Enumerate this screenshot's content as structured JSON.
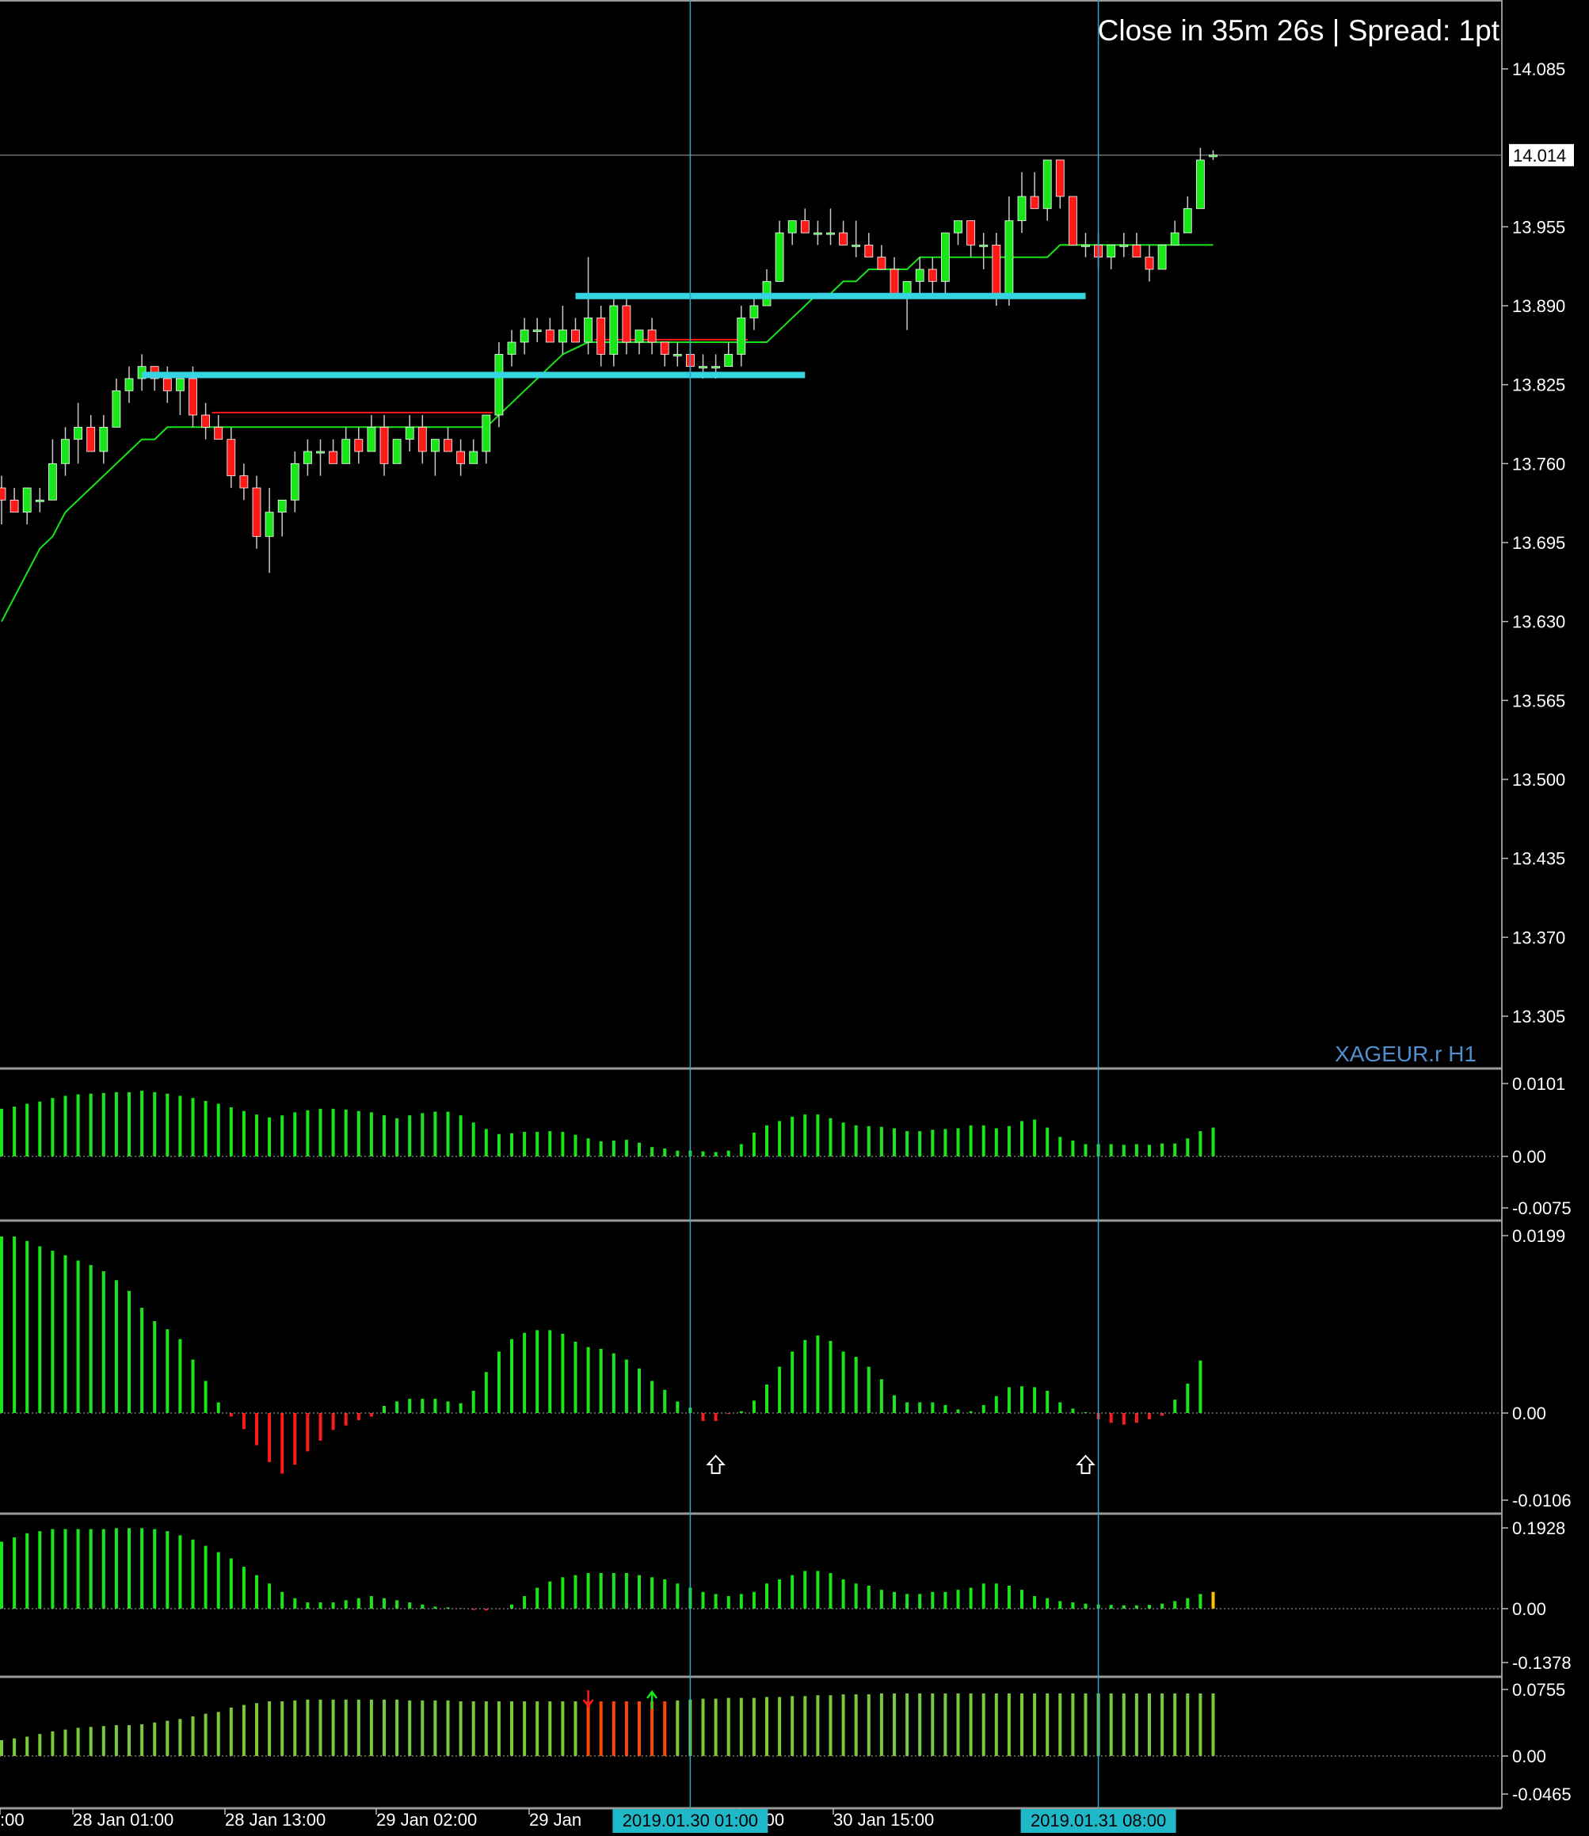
{
  "header": {
    "countdown": "Close in 35m 26s | Spread: 1pt",
    "symbol_label": "XAGEUR.r H1"
  },
  "colors": {
    "background": "#000000",
    "bull": "#19e619",
    "bear": "#ff1a1a",
    "wick": "#c8c8c8",
    "ma": "#19e619",
    "level": "#35d4e0",
    "vline": "#2aa8c8",
    "divider": "#9a9a9a",
    "orange": "#ff4500",
    "yellow": "#ffc000"
  },
  "price_panel": {
    "y_ticks": [
      "14.085",
      "13.955",
      "13.890",
      "13.825",
      "13.760",
      "13.695",
      "13.630",
      "13.565",
      "13.500",
      "13.435",
      "13.370",
      "13.305"
    ],
    "ylim": [
      13.26,
      14.11
    ],
    "current_price": "14.014"
  },
  "indicator_panels": [
    {
      "ticks": [
        "0.0101",
        "0.00",
        "-0.0075"
      ]
    },
    {
      "ticks": [
        "0.0199",
        "0.00",
        "-0.0106"
      ]
    },
    {
      "ticks": [
        "0.1928",
        "0.00",
        "-0.1378"
      ]
    },
    {
      "ticks": [
        "0.0755",
        "0.00",
        "-0.0465"
      ]
    }
  ],
  "x_axis": {
    "labels": [
      ":00",
      "28 Jan 01:00",
      "28 Jan 13:00",
      "29 Jan 02:00",
      "29 Jan",
      "03:00",
      "30 Jan 15:00"
    ],
    "highlight_labels": [
      "2019.01.30 01:00",
      "2019.01.31 08:00"
    ]
  },
  "chart_data": {
    "type": "candlestick",
    "ylim": [
      13.26,
      14.11
    ],
    "candles": [
      [
        13.74,
        13.75,
        13.71,
        13.73
      ],
      [
        13.73,
        13.74,
        13.72,
        13.72
      ],
      [
        13.72,
        13.74,
        13.71,
        13.74
      ],
      [
        13.73,
        13.74,
        13.72,
        13.73
      ],
      [
        13.73,
        13.78,
        13.73,
        13.76
      ],
      [
        13.76,
        13.79,
        13.75,
        13.78
      ],
      [
        13.78,
        13.81,
        13.76,
        13.79
      ],
      [
        13.79,
        13.8,
        13.77,
        13.77
      ],
      [
        13.77,
        13.8,
        13.76,
        13.79
      ],
      [
        13.79,
        13.83,
        13.79,
        13.82
      ],
      [
        13.82,
        13.84,
        13.81,
        13.83
      ],
      [
        13.83,
        13.85,
        13.82,
        13.84
      ],
      [
        13.84,
        13.84,
        13.82,
        13.83
      ],
      [
        13.83,
        13.84,
        13.81,
        13.82
      ],
      [
        13.82,
        13.83,
        13.8,
        13.83
      ],
      [
        13.83,
        13.84,
        13.79,
        13.8
      ],
      [
        13.8,
        13.81,
        13.78,
        13.79
      ],
      [
        13.79,
        13.8,
        13.78,
        13.78
      ],
      [
        13.78,
        13.79,
        13.74,
        13.75
      ],
      [
        13.75,
        13.76,
        13.73,
        13.74
      ],
      [
        13.74,
        13.75,
        13.69,
        13.7
      ],
      [
        13.7,
        13.74,
        13.67,
        13.72
      ],
      [
        13.72,
        13.73,
        13.7,
        13.73
      ],
      [
        13.73,
        13.77,
        13.72,
        13.76
      ],
      [
        13.76,
        13.78,
        13.75,
        13.77
      ],
      [
        13.77,
        13.78,
        13.75,
        13.77
      ],
      [
        13.77,
        13.78,
        13.76,
        13.76
      ],
      [
        13.76,
        13.79,
        13.76,
        13.78
      ],
      [
        13.78,
        13.79,
        13.76,
        13.77
      ],
      [
        13.77,
        13.8,
        13.77,
        13.79
      ],
      [
        13.79,
        13.8,
        13.75,
        13.76
      ],
      [
        13.76,
        13.78,
        13.76,
        13.78
      ],
      [
        13.78,
        13.8,
        13.77,
        13.79
      ],
      [
        13.79,
        13.8,
        13.76,
        13.77
      ],
      [
        13.77,
        13.78,
        13.75,
        13.78
      ],
      [
        13.78,
        13.79,
        13.77,
        13.77
      ],
      [
        13.77,
        13.78,
        13.75,
        13.76
      ],
      [
        13.76,
        13.78,
        13.76,
        13.77
      ],
      [
        13.77,
        13.8,
        13.76,
        13.8
      ],
      [
        13.8,
        13.86,
        13.79,
        13.85
      ],
      [
        13.85,
        13.87,
        13.84,
        13.86
      ],
      [
        13.86,
        13.88,
        13.85,
        13.87
      ],
      [
        13.87,
        13.88,
        13.86,
        13.87
      ],
      [
        13.87,
        13.88,
        13.86,
        13.86
      ],
      [
        13.86,
        13.89,
        13.85,
        13.87
      ],
      [
        13.87,
        13.88,
        13.86,
        13.86
      ],
      [
        13.86,
        13.93,
        13.85,
        13.88
      ],
      [
        13.88,
        13.89,
        13.84,
        13.85
      ],
      [
        13.85,
        13.9,
        13.84,
        13.89
      ],
      [
        13.89,
        13.9,
        13.85,
        13.86
      ],
      [
        13.86,
        13.87,
        13.85,
        13.87
      ],
      [
        13.87,
        13.88,
        13.85,
        13.86
      ],
      [
        13.86,
        13.86,
        13.84,
        13.85
      ],
      [
        13.85,
        13.86,
        13.84,
        13.85
      ],
      [
        13.85,
        13.86,
        13.83,
        13.84
      ],
      [
        13.84,
        13.85,
        13.83,
        13.84
      ],
      [
        13.84,
        13.85,
        13.83,
        13.84
      ],
      [
        13.84,
        13.86,
        13.84,
        13.85
      ],
      [
        13.85,
        13.89,
        13.84,
        13.88
      ],
      [
        13.88,
        13.9,
        13.87,
        13.89
      ],
      [
        13.89,
        13.92,
        13.89,
        13.91
      ],
      [
        13.91,
        13.96,
        13.91,
        13.95
      ],
      [
        13.95,
        13.96,
        13.94,
        13.96
      ],
      [
        13.96,
        13.97,
        13.95,
        13.95
      ],
      [
        13.95,
        13.96,
        13.94,
        13.95
      ],
      [
        13.95,
        13.97,
        13.94,
        13.95
      ],
      [
        13.95,
        13.96,
        13.94,
        13.94
      ],
      [
        13.94,
        13.96,
        13.93,
        13.94
      ],
      [
        13.94,
        13.95,
        13.93,
        13.93
      ],
      [
        13.93,
        13.94,
        13.92,
        13.92
      ],
      [
        13.92,
        13.93,
        13.9,
        13.9
      ],
      [
        13.9,
        13.91,
        13.87,
        13.91
      ],
      [
        13.91,
        13.93,
        13.9,
        13.92
      ],
      [
        13.92,
        13.93,
        13.9,
        13.91
      ],
      [
        13.91,
        13.95,
        13.9,
        13.95
      ],
      [
        13.95,
        13.96,
        13.94,
        13.96
      ],
      [
        13.96,
        13.96,
        13.93,
        13.94
      ],
      [
        13.94,
        13.95,
        13.92,
        13.94
      ],
      [
        13.94,
        13.95,
        13.89,
        13.9
      ],
      [
        13.9,
        13.98,
        13.89,
        13.96
      ],
      [
        13.96,
        14.0,
        13.95,
        13.98
      ],
      [
        13.98,
        14.0,
        13.97,
        13.97
      ],
      [
        13.97,
        14.01,
        13.96,
        14.01
      ],
      [
        14.01,
        14.01,
        13.97,
        13.98
      ],
      [
        13.98,
        13.98,
        13.94,
        13.94
      ],
      [
        13.94,
        13.95,
        13.93,
        13.94
      ],
      [
        13.94,
        13.95,
        13.92,
        13.93
      ],
      [
        13.93,
        13.94,
        13.92,
        13.94
      ],
      [
        13.94,
        13.95,
        13.93,
        13.94
      ],
      [
        13.94,
        13.95,
        13.93,
        13.93
      ],
      [
        13.93,
        13.94,
        13.91,
        13.92
      ],
      [
        13.92,
        13.94,
        13.92,
        13.94
      ],
      [
        13.94,
        13.96,
        13.94,
        13.95
      ],
      [
        13.95,
        13.98,
        13.95,
        13.97
      ],
      [
        13.97,
        14.02,
        13.97,
        14.01
      ],
      [
        14.014,
        14.018,
        14.01,
        14.014
      ]
    ],
    "ma": [
      13.63,
      13.65,
      13.67,
      13.69,
      13.7,
      13.72,
      13.73,
      13.74,
      13.75,
      13.76,
      13.77,
      13.78,
      13.78,
      13.79,
      13.79,
      13.79,
      13.79,
      13.79,
      13.79,
      13.79,
      13.79,
      13.79,
      13.79,
      13.79,
      13.79,
      13.79,
      13.79,
      13.79,
      13.79,
      13.79,
      13.79,
      13.79,
      13.79,
      13.79,
      13.79,
      13.79,
      13.79,
      13.79,
      13.79,
      13.8,
      13.81,
      13.82,
      13.83,
      13.84,
      13.85,
      13.855,
      13.86,
      13.86,
      13.86,
      13.86,
      13.86,
      13.86,
      13.86,
      13.86,
      13.86,
      13.86,
      13.86,
      13.86,
      13.86,
      13.86,
      13.86,
      13.87,
      13.88,
      13.89,
      13.9,
      13.9,
      13.91,
      13.91,
      13.92,
      13.92,
      13.92,
      13.92,
      13.93,
      13.93,
      13.93,
      13.93,
      13.93,
      13.93,
      13.93,
      13.93,
      13.93,
      13.93,
      13.93,
      13.94,
      13.94,
      13.94,
      13.94,
      13.94,
      13.94,
      13.94,
      13.94,
      13.94,
      13.94,
      13.94,
      13.94,
      13.94
    ],
    "levels": [
      {
        "price": 13.833,
        "from": 11,
        "to": 63
      },
      {
        "price": 13.898,
        "from": 45,
        "to": 85
      }
    ],
    "red_segments": [
      {
        "price": 13.802,
        "from": 16,
        "to": 38
      },
      {
        "price": 13.862,
        "from": 46,
        "to": 58
      }
    ],
    "vlines_at_index": [
      54,
      86
    ],
    "ind1": [
      0.0066,
      0.0069,
      0.0073,
      0.0076,
      0.0081,
      0.0084,
      0.0086,
      0.0087,
      0.0088,
      0.0089,
      0.0089,
      0.0091,
      0.0089,
      0.0087,
      0.0084,
      0.0081,
      0.0077,
      0.0073,
      0.0068,
      0.0063,
      0.0058,
      0.0054,
      0.0057,
      0.0061,
      0.0064,
      0.0066,
      0.0066,
      0.0065,
      0.0063,
      0.0061,
      0.0057,
      0.0053,
      0.0057,
      0.006,
      0.0062,
      0.0062,
      0.0057,
      0.0047,
      0.0038,
      0.0031,
      0.0032,
      0.0034,
      0.0034,
      0.0035,
      0.0034,
      0.003,
      0.0025,
      0.0021,
      0.0022,
      0.0023,
      0.0019,
      0.0013,
      0.0011,
      0.0008,
      0.0008,
      0.0007,
      0.0006,
      0.0008,
      0.0017,
      0.0033,
      0.0043,
      0.0049,
      0.0055,
      0.0058,
      0.0058,
      0.0053,
      0.0047,
      0.0043,
      0.0042,
      0.0041,
      0.0039,
      0.0035,
      0.0035,
      0.0037,
      0.0038,
      0.0039,
      0.0043,
      0.0043,
      0.0039,
      0.0042,
      0.0049,
      0.0051,
      0.004,
      0.0027,
      0.0022,
      0.0017,
      0.0017,
      0.0017,
      0.0016,
      0.0017,
      0.0016,
      0.0018,
      0.0018,
      0.0025,
      0.0035,
      0.004
    ],
    "ind2": [
      0.0198,
      0.0198,
      0.0193,
      0.0187,
      0.0182,
      0.0177,
      0.0171,
      0.0166,
      0.0159,
      0.0149,
      0.0137,
      0.0118,
      0.0103,
      0.0094,
      0.0083,
      0.006,
      0.0036,
      0.0012,
      -0.0004,
      -0.0018,
      -0.0036,
      -0.0055,
      -0.0068,
      -0.0058,
      -0.0043,
      -0.0031,
      -0.0019,
      -0.0014,
      -0.0008,
      -0.0004,
      0.0008,
      0.0013,
      0.0016,
      0.0016,
      0.0016,
      0.0013,
      0.0011,
      0.0025,
      0.0046,
      0.0069,
      0.0083,
      0.009,
      0.0093,
      0.0093,
      0.0089,
      0.008,
      0.0074,
      0.0072,
      0.0067,
      0.006,
      0.005,
      0.0036,
      0.0026,
      0.0013,
      0.0006,
      -0.0009,
      -0.0009,
      -0.0001,
      0.0002,
      0.0014,
      0.0032,
      0.0052,
      0.0069,
      0.0082,
      0.0087,
      0.0081,
      0.0069,
      0.0063,
      0.0052,
      0.0038,
      0.002,
      0.0012,
      0.0012,
      0.0012,
      0.0009,
      0.0004,
      0.0002,
      0.0009,
      0.0019,
      0.0029,
      0.003,
      0.0029,
      0.0025,
      0.0012,
      0.0005,
      0.0001,
      -0.0007,
      -0.0011,
      -0.0013,
      -0.0011,
      -0.0007,
      -0.0003,
      0.0015,
      0.0033,
      0.0059
    ],
    "ind3": [
      0.16,
      0.17,
      0.18,
      0.185,
      0.19,
      0.19,
      0.19,
      0.19,
      0.19,
      0.192,
      0.192,
      0.192,
      0.19,
      0.185,
      0.175,
      0.165,
      0.15,
      0.135,
      0.12,
      0.1,
      0.08,
      0.06,
      0.04,
      0.025,
      0.015,
      0.015,
      0.015,
      0.02,
      0.025,
      0.03,
      0.025,
      0.02,
      0.015,
      0.01,
      0.005,
      0.003,
      0.001,
      -0.003,
      -0.004,
      -0.001,
      0.01,
      0.03,
      0.05,
      0.065,
      0.075,
      0.08,
      0.085,
      0.085,
      0.085,
      0.085,
      0.08,
      0.075,
      0.07,
      0.06,
      0.05,
      0.04,
      0.035,
      0.03,
      0.035,
      0.04,
      0.06,
      0.07,
      0.08,
      0.09,
      0.09,
      0.085,
      0.07,
      0.06,
      0.055,
      0.045,
      0.04,
      0.035,
      0.035,
      0.04,
      0.04,
      0.045,
      0.05,
      0.06,
      0.06,
      0.055,
      0.045,
      0.03,
      0.025,
      0.018,
      0.015,
      0.012,
      0.01,
      0.009,
      0.008,
      0.008,
      0.009,
      0.012,
      0.018,
      0.025,
      0.035,
      0.04
    ],
    "ind4": [
      0.018,
      0.02,
      0.022,
      0.025,
      0.028,
      0.03,
      0.032,
      0.033,
      0.034,
      0.035,
      0.035,
      0.036,
      0.038,
      0.04,
      0.042,
      0.045,
      0.048,
      0.05,
      0.055,
      0.058,
      0.06,
      0.062,
      0.062,
      0.063,
      0.064,
      0.064,
      0.064,
      0.064,
      0.064,
      0.064,
      0.064,
      0.064,
      0.063,
      0.063,
      0.063,
      0.063,
      0.062,
      0.062,
      0.062,
      0.062,
      0.062,
      0.062,
      0.062,
      0.062,
      0.062,
      0.062,
      0.062,
      0.062,
      0.062,
      0.062,
      0.062,
      0.062,
      0.062,
      0.063,
      0.064,
      0.065,
      0.065,
      0.066,
      0.066,
      0.066,
      0.067,
      0.067,
      0.068,
      0.068,
      0.069,
      0.069,
      0.07,
      0.07,
      0.07,
      0.071,
      0.071,
      0.071,
      0.071,
      0.071,
      0.071,
      0.071,
      0.071,
      0.071,
      0.071,
      0.071,
      0.071,
      0.071,
      0.071,
      0.071,
      0.071,
      0.071,
      0.071,
      0.071,
      0.071,
      0.071,
      0.071,
      0.071,
      0.071,
      0.071,
      0.071,
      0.071
    ],
    "ind4_orange_range": [
      46,
      52
    ],
    "ind4_arrows": [
      {
        "i": 46,
        "dir": "down"
      },
      {
        "i": 51,
        "dir": "up"
      }
    ],
    "ind2_arrow_idx": [
      56,
      85
    ],
    "ind3_last_yellow": true
  }
}
